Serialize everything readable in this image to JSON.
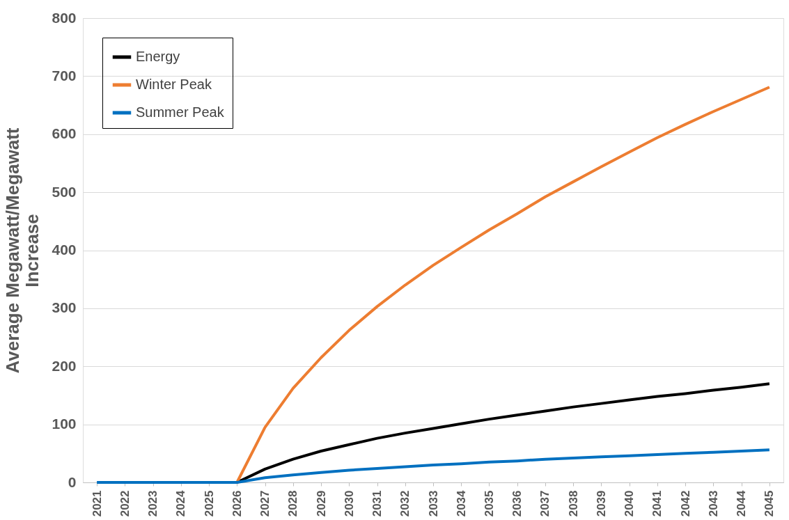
{
  "chart_data": {
    "type": "line",
    "ylabel": "Average Megawatt/Megawatt Increase",
    "categories": [
      "2021",
      "2022",
      "2023",
      "2024",
      "2025",
      "2026",
      "2027",
      "2028",
      "2029",
      "2030",
      "2031",
      "2032",
      "2033",
      "2034",
      "2035",
      "2036",
      "2037",
      "2038",
      "2039",
      "2040",
      "2041",
      "2042",
      "2043",
      "2044",
      "2045"
    ],
    "series": [
      {
        "name": "Energy",
        "color": "#000000",
        "values": [
          null,
          null,
          null,
          null,
          0,
          0,
          23,
          40,
          54,
          65,
          76,
          85,
          93,
          101,
          109,
          116,
          123,
          130,
          136,
          142,
          148,
          153,
          159,
          164,
          170
        ]
      },
      {
        "name": "Winter Peak",
        "color": "#ed7d31",
        "values": [
          null,
          null,
          null,
          null,
          0,
          0,
          95,
          162,
          215,
          262,
          303,
          340,
          374,
          405,
          435,
          463,
          492,
          518,
          544,
          569,
          594,
          617,
          639,
          660,
          681
        ]
      },
      {
        "name": "Summer Peak",
        "color": "#0070c0",
        "values": [
          0,
          0,
          0,
          0,
          0,
          0,
          8,
          13,
          17,
          21,
          24,
          27,
          30,
          32,
          35,
          37,
          40,
          42,
          44,
          46,
          48,
          50,
          52,
          54,
          56
        ]
      }
    ],
    "ylim": [
      0,
      800
    ],
    "yticks": [
      0,
      100,
      200,
      300,
      400,
      500,
      600,
      700,
      800
    ],
    "grid": "y",
    "legend": "top left",
    "marker": "none",
    "line_style": "solid"
  }
}
